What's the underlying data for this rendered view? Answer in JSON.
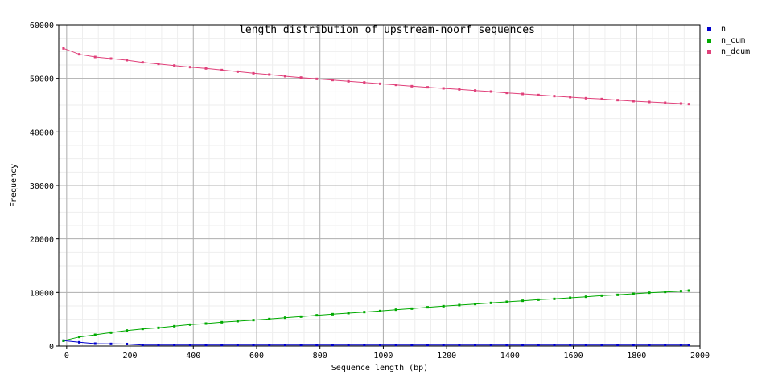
{
  "chart_data": {
    "type": "line",
    "title": "length distribution of upstream-noorf sequences",
    "xlabel": "Sequence length (bp)",
    "ylabel": "Frequency",
    "xlim": [
      -25,
      2000
    ],
    "ylim": [
      0,
      60000
    ],
    "x_ticks": [
      "0",
      "200",
      "400",
      "600",
      "800",
      "1000",
      "1200",
      "1400",
      "1600",
      "1800",
      "2000"
    ],
    "y_ticks": [
      "0",
      "10000",
      "20000",
      "30000",
      "40000",
      "50000",
      "60000"
    ],
    "x_tick_values": [
      0,
      200,
      400,
      600,
      800,
      1000,
      1200,
      1400,
      1600,
      1800,
      2000
    ],
    "y_tick_values": [
      0,
      10000,
      20000,
      30000,
      40000,
      50000,
      60000
    ],
    "grid": true,
    "legend_position": "top-right",
    "x": [
      -10,
      40,
      90,
      140,
      190,
      240,
      290,
      340,
      390,
      440,
      490,
      540,
      590,
      640,
      690,
      740,
      790,
      840,
      890,
      940,
      990,
      1040,
      1090,
      1140,
      1190,
      1240,
      1290,
      1340,
      1390,
      1440,
      1490,
      1540,
      1590,
      1640,
      1690,
      1740,
      1790,
      1840,
      1890,
      1940,
      1965
    ],
    "series": [
      {
        "name": "n",
        "color": "#0000cc",
        "values": [
          1000,
          700,
          450,
          400,
          380,
          200,
          200,
          200,
          200,
          200,
          200,
          200,
          200,
          200,
          200,
          200,
          200,
          200,
          200,
          200,
          200,
          200,
          200,
          200,
          200,
          200,
          200,
          200,
          200,
          200,
          200,
          200,
          200,
          200,
          200,
          200,
          200,
          200,
          200,
          200,
          200
        ]
      },
      {
        "name": "n_cum",
        "color": "#00aa00",
        "values": [
          1000,
          1700,
          2100,
          2500,
          2900,
          3200,
          3400,
          3700,
          4000,
          4200,
          4450,
          4650,
          4850,
          5050,
          5300,
          5500,
          5750,
          5950,
          6150,
          6350,
          6550,
          6800,
          7000,
          7250,
          7450,
          7650,
          7850,
          8050,
          8250,
          8450,
          8650,
          8800,
          9000,
          9200,
          9400,
          9550,
          9750,
          9950,
          10100,
          10250,
          10350
        ]
      },
      {
        "name": "n_dcum",
        "color": "#e0407a",
        "values": [
          55600,
          54500,
          54000,
          53700,
          53400,
          53000,
          52700,
          52400,
          52100,
          51850,
          51550,
          51250,
          50950,
          50700,
          50400,
          50150,
          49900,
          49700,
          49450,
          49250,
          49000,
          48800,
          48550,
          48350,
          48150,
          47950,
          47750,
          47550,
          47300,
          47100,
          46900,
          46700,
          46500,
          46300,
          46150,
          45950,
          45750,
          45600,
          45450,
          45300,
          45200
        ]
      }
    ]
  }
}
